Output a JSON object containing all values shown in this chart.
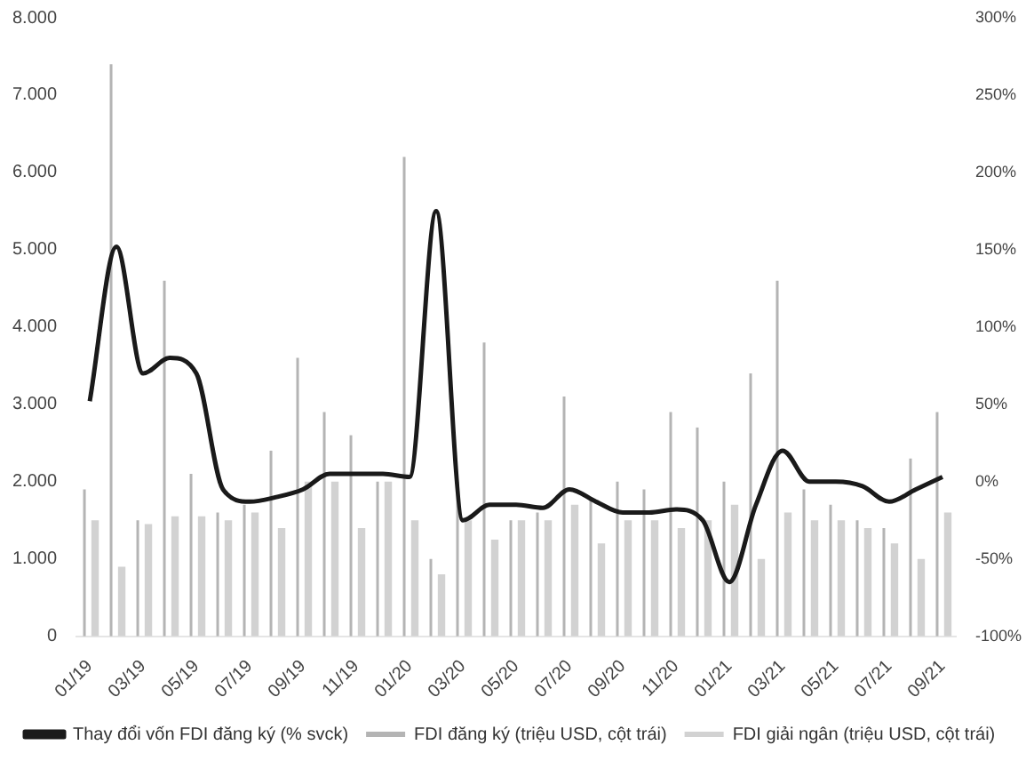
{
  "chart_data": {
    "type": "bar",
    "categories": [
      "01/19",
      null,
      "03/19",
      null,
      "05/19",
      null,
      "07/19",
      null,
      "09/19",
      null,
      "11/19",
      null,
      "01/20",
      null,
      "03/20",
      null,
      "05/20",
      null,
      "07/20",
      null,
      "09/20",
      null,
      "11/20",
      null,
      "01/21",
      null,
      "03/21",
      null,
      "05/21",
      null,
      "07/21",
      null,
      "09/21"
    ],
    "series": [
      {
        "name": "FDI đăng ký (triệu USD, cột trái)",
        "color": "#b4b4b4",
        "values": [
          1900,
          7400,
          1500,
          4600,
          2100,
          1600,
          1700,
          2400,
          3600,
          2900,
          2600,
          2000,
          6200,
          1000,
          2000,
          3800,
          1500,
          1600,
          3100,
          1800,
          2000,
          1900,
          2900,
          2700,
          2000,
          3400,
          4600,
          1900,
          1700,
          1500,
          1400,
          2300,
          2900
        ]
      },
      {
        "name": "FDI giải ngân (triệu USD, cột trái)",
        "color": "#d2d2d2",
        "values": [
          1500,
          900,
          1450,
          1550,
          1550,
          1500,
          1600,
          1400,
          2000,
          2000,
          1400,
          2000,
          1500,
          800,
          1500,
          1250,
          1500,
          1500,
          1700,
          1200,
          1500,
          1500,
          1400,
          1500,
          1700,
          1000,
          1600,
          1500,
          1500,
          1400,
          1200,
          1000,
          1600
        ]
      },
      {
        "name": "Thay đổi vốn FDI đăng ký (% svck)",
        "type": "line",
        "axis": "y2",
        "color": "#1a1a1a",
        "values": [
          52,
          152,
          70,
          80,
          70,
          -5,
          -13,
          -10,
          -5,
          5,
          5,
          5,
          3,
          175,
          -25,
          -15,
          -15,
          -17,
          -5,
          -13,
          -20,
          -20,
          -18,
          -25,
          -65,
          -15,
          20,
          0,
          0,
          -3,
          -13,
          -5,
          3
        ]
      }
    ],
    "ylim": [
      0,
      8000
    ],
    "yticks": [
      0,
      {
        "value": 1000,
        "label": "1.000"
      },
      {
        "value": 2000,
        "label": "2.000"
      },
      {
        "value": 3000,
        "label": "3.000"
      },
      {
        "value": 4000,
        "label": "4.000"
      },
      {
        "value": 5000,
        "label": "5.000"
      },
      {
        "value": 6000,
        "label": "6.000"
      },
      {
        "value": 7000,
        "label": "7.000"
      },
      {
        "value": 8000,
        "label": "8.000"
      }
    ],
    "y2lim": [
      -100,
      300
    ],
    "y2ticks": [
      {
        "value": -100,
        "label": "-100%"
      },
      {
        "value": -50,
        "label": "-50%"
      },
      {
        "value": 0,
        "label": "0%"
      },
      {
        "value": 50,
        "label": "50%"
      },
      {
        "value": 100,
        "label": "100%"
      },
      {
        "value": 150,
        "label": "150%"
      },
      {
        "value": 200,
        "label": "200%"
      },
      {
        "value": 250,
        "label": "250%"
      },
      {
        "value": 300,
        "label": "300%"
      }
    ],
    "legend": "bottom",
    "marker": "none",
    "line_style": "solid",
    "grid": false
  }
}
